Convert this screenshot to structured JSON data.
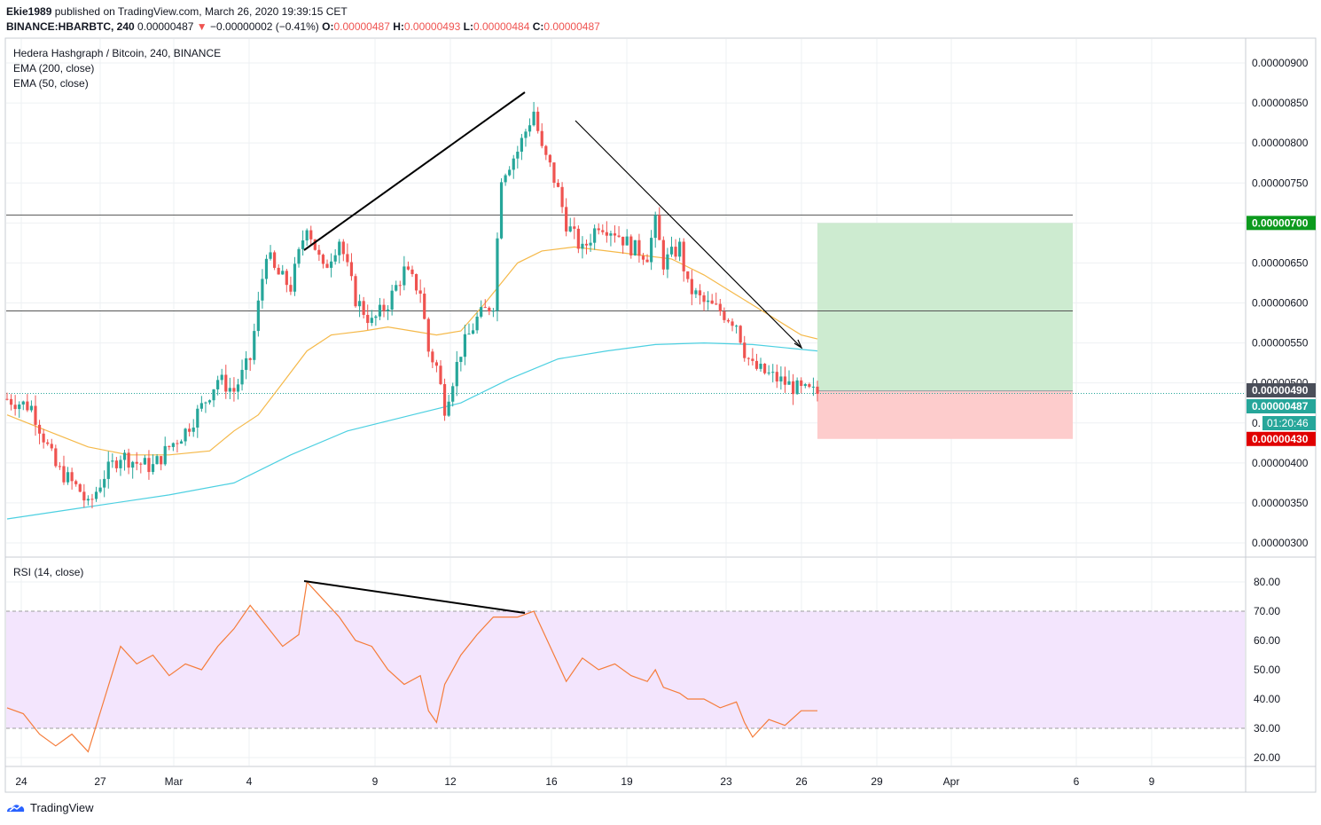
{
  "header": {
    "publisher": "Ekie1989",
    "published_text": "published on TradingView.com, March 26, 2020 19:39:15 CET",
    "symbol": "BINANCE:HBARBTC, 240",
    "price": "0.00000487",
    "change": "−0.00000002 (−0.41%)",
    "o_label": "O:",
    "o": "0.00000487",
    "h_label": "H:",
    "h": "0.00000493",
    "l_label": "L:",
    "l": "0.00000484",
    "c_label": "C:",
    "c": "0.00000487"
  },
  "main_pane": {
    "title": "Hedera Hashgraph / Bitcoin, 240, BINANCE",
    "indicators": [
      "EMA (200, close)",
      "EMA (50, close)"
    ]
  },
  "rsi_pane": {
    "title": "RSI (14, close)"
  },
  "price_axis_labels": [
    "0.00000900",
    "0.00000850",
    "0.00000800",
    "0.00000750",
    "0.00000650",
    "0.00000600",
    "0.00000550",
    "0.00000500",
    "0.00000400",
    "0.00000350",
    "0.00000300"
  ],
  "price_axis_badges": {
    "target": "0.00000700",
    "line": "0.00000490",
    "current": "0.00000487",
    "countdown": "01:20:46",
    "stop": "0.00000430"
  },
  "rsi_axis_labels": [
    "80.00",
    "70.00",
    "60.00",
    "50.00",
    "40.00",
    "30.00",
    "20.00"
  ],
  "time_axis_labels": [
    "24",
    "27",
    "Mar",
    "4",
    "9",
    "12",
    "16",
    "19",
    "23",
    "26",
    "29",
    "Apr",
    "6",
    "9"
  ],
  "footer": {
    "brand": "TradingView"
  },
  "colors": {
    "up": "#26a69a",
    "down": "#ef5350",
    "ema200": "#4dd0e1",
    "ema50": "#f5b94a",
    "rsi": "#f57c3a",
    "rsi_band": "#f3e5fd",
    "target_zone": "#cdebd0",
    "stop_zone": "#fdcccc",
    "target_badge": "#0c9a1e",
    "stop_badge": "#e00000",
    "current_badge": "#26a69a"
  },
  "chart_data": {
    "type": "candlestick",
    "timeframe": "240",
    "ylim": [
      2.8e-06,
      9.2e-06
    ],
    "x_ticks": [
      "24",
      "27",
      "Mar",
      "4",
      "9",
      "12",
      "16",
      "19",
      "23",
      "26",
      "29",
      "Apr",
      "6",
      "9"
    ],
    "horizontal_levels": [
      7.1e-06,
      5.9e-06
    ],
    "position": {
      "entry": 4.9e-06,
      "target": 7e-06,
      "stop": 4.3e-06
    },
    "close_path": [
      [
        0,
        4.8e-06
      ],
      [
        3,
        4.7e-06
      ],
      [
        6,
        3.95e-06
      ],
      [
        9,
        3.65e-06
      ],
      [
        10,
        3.45e-06
      ],
      [
        12,
        3.85e-06
      ],
      [
        14,
        4.1e-06
      ],
      [
        16,
        4e-06
      ],
      [
        18,
        3.95e-06
      ],
      [
        20,
        4.2e-06
      ],
      [
        22,
        4.4e-06
      ],
      [
        24,
        4.7e-06
      ],
      [
        26,
        5.05e-06
      ],
      [
        28,
        4.9e-06
      ],
      [
        30,
        5.3e-06
      ],
      [
        32,
        6.65e-06
      ],
      [
        33,
        6.4e-06
      ],
      [
        35,
        6.2e-06
      ],
      [
        37,
        7e-06
      ],
      [
        39,
        6.4e-06
      ],
      [
        41,
        6.8e-06
      ],
      [
        43,
        6.05e-06
      ],
      [
        45,
        5.75e-06
      ],
      [
        47,
        6e-06
      ],
      [
        49,
        6.4e-06
      ],
      [
        51,
        6.15e-06
      ],
      [
        52,
        5.4e-06
      ],
      [
        53,
        5.2e-06
      ],
      [
        54,
        4.7e-06
      ],
      [
        56,
        5.4e-06
      ],
      [
        58,
        5.8e-06
      ],
      [
        60,
        6e-06
      ],
      [
        61,
        7.6e-06
      ],
      [
        63,
        7.9e-06
      ],
      [
        65,
        8.4e-06
      ],
      [
        66,
        7.9e-06
      ],
      [
        67,
        7.7e-06
      ],
      [
        68,
        7.4e-06
      ],
      [
        69,
        7e-06
      ],
      [
        71,
        6.65e-06
      ],
      [
        73,
        7e-06
      ],
      [
        75,
        6.9e-06
      ],
      [
        77,
        6.7e-06
      ],
      [
        79,
        6.6e-06
      ],
      [
        80,
        7e-06
      ],
      [
        81,
        6.5e-06
      ],
      [
        83,
        6.7e-06
      ],
      [
        84,
        6.2e-06
      ],
      [
        86,
        6e-06
      ],
      [
        88,
        5.9e-06
      ],
      [
        90,
        5.75e-06
      ],
      [
        91,
        5.4e-06
      ],
      [
        92,
        5.2e-06
      ],
      [
        94,
        5.1e-06
      ],
      [
        96,
        5e-06
      ],
      [
        98,
        4.9e-06
      ],
      [
        100,
        4.87e-06
      ]
    ],
    "ema50": [
      [
        0,
        4.6e-06
      ],
      [
        5,
        4.4e-06
      ],
      [
        10,
        4.2e-06
      ],
      [
        15,
        4.1e-06
      ],
      [
        20,
        4.1e-06
      ],
      [
        25,
        4.15e-06
      ],
      [
        28,
        4.4e-06
      ],
      [
        31,
        4.6e-06
      ],
      [
        34,
        5e-06
      ],
      [
        37,
        5.4e-06
      ],
      [
        40,
        5.6e-06
      ],
      [
        44,
        5.65e-06
      ],
      [
        47,
        5.7e-06
      ],
      [
        50,
        5.65e-06
      ],
      [
        53,
        5.6e-06
      ],
      [
        56,
        5.65e-06
      ],
      [
        59,
        6e-06
      ],
      [
        63,
        6.5e-06
      ],
      [
        66,
        6.65e-06
      ],
      [
        70,
        6.7e-06
      ],
      [
        74,
        6.65e-06
      ],
      [
        78,
        6.6e-06
      ],
      [
        82,
        6.55e-06
      ],
      [
        86,
        6.35e-06
      ],
      [
        90,
        6.1e-06
      ],
      [
        94,
        5.85e-06
      ],
      [
        98,
        5.6e-06
      ],
      [
        100,
        5.55e-06
      ]
    ],
    "ema200": [
      [
        0,
        3.3e-06
      ],
      [
        10,
        3.45e-06
      ],
      [
        20,
        3.6e-06
      ],
      [
        28,
        3.75e-06
      ],
      [
        35,
        4.1e-06
      ],
      [
        42,
        4.4e-06
      ],
      [
        50,
        4.6e-06
      ],
      [
        56,
        4.75e-06
      ],
      [
        62,
        5.05e-06
      ],
      [
        68,
        5.3e-06
      ],
      [
        74,
        5.4e-06
      ],
      [
        80,
        5.48e-06
      ],
      [
        86,
        5.5e-06
      ],
      [
        92,
        5.48e-06
      ],
      [
        100,
        5.4e-06
      ]
    ],
    "rsi": [
      [
        0,
        37
      ],
      [
        2,
        35
      ],
      [
        4,
        28
      ],
      [
        6,
        24
      ],
      [
        8,
        28
      ],
      [
        10,
        22
      ],
      [
        12,
        40
      ],
      [
        14,
        58
      ],
      [
        16,
        52
      ],
      [
        18,
        55
      ],
      [
        20,
        48
      ],
      [
        22,
        52
      ],
      [
        24,
        50
      ],
      [
        26,
        58
      ],
      [
        28,
        64
      ],
      [
        30,
        72
      ],
      [
        32,
        65
      ],
      [
        34,
        58
      ],
      [
        36,
        62
      ],
      [
        37,
        80
      ],
      [
        39,
        74
      ],
      [
        41,
        68
      ],
      [
        43,
        60
      ],
      [
        45,
        58
      ],
      [
        47,
        50
      ],
      [
        49,
        45
      ],
      [
        51,
        48
      ],
      [
        52,
        36
      ],
      [
        53,
        32
      ],
      [
        54,
        45
      ],
      [
        56,
        55
      ],
      [
        58,
        62
      ],
      [
        60,
        68
      ],
      [
        61,
        68
      ],
      [
        63,
        68
      ],
      [
        65,
        70
      ],
      [
        66,
        64
      ],
      [
        67,
        58
      ],
      [
        69,
        46
      ],
      [
        71,
        54
      ],
      [
        73,
        50
      ],
      [
        75,
        52
      ],
      [
        77,
        48
      ],
      [
        79,
        46
      ],
      [
        80,
        50
      ],
      [
        81,
        44
      ],
      [
        83,
        42
      ],
      [
        84,
        40
      ],
      [
        86,
        40
      ],
      [
        88,
        37
      ],
      [
        90,
        39
      ],
      [
        91,
        32
      ],
      [
        92,
        27
      ],
      [
        94,
        33
      ],
      [
        96,
        31
      ],
      [
        98,
        36
      ],
      [
        100,
        36
      ]
    ],
    "rsi_levels": [
      70,
      30
    ]
  }
}
